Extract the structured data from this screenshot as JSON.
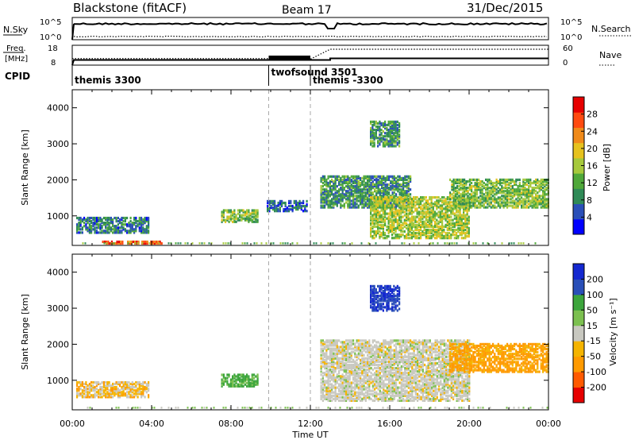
{
  "header": {
    "station": "Blackstone (fitACF)",
    "beam": "Beam 17",
    "date": "31/Dec/2015"
  },
  "aux": {
    "nsky_label": "N.Sky",
    "nsky_ticks": [
      "10^5",
      "10^0"
    ],
    "nsearch_label": "N.Search",
    "nsearch_ticks": [
      "10^5",
      "10^0"
    ],
    "freq_label_1": "Freq.",
    "freq_label_2": "[MHz]",
    "freq_ticks": [
      "18",
      "8"
    ],
    "nave_label": "Nave",
    "nave_ticks": [
      "60",
      "0"
    ],
    "cpid_label": "CPID",
    "cpid_segments": [
      {
        "label": "themis 3300",
        "start": 0,
        "end": 9.9
      },
      {
        "label": "twofsound 3501",
        "start": 9.9,
        "end": 12
      },
      {
        "label": "themis -3300",
        "start": 12,
        "end": 24
      }
    ]
  },
  "chart_data": [
    {
      "type": "heatmap",
      "name": "power",
      "ylabel": "Slant Range [km]",
      "x_range_hours": [
        0,
        24
      ],
      "ylim": [
        180,
        4500
      ],
      "yticks": [
        "1000",
        "2000",
        "3000",
        "4000"
      ],
      "colorbar": {
        "label": "Power [dB]",
        "ticks": [
          "28",
          "24",
          "20",
          "16",
          "12",
          "8",
          "4"
        ],
        "colors": [
          "#0000ff",
          "#2a4fb8",
          "#2f8a57",
          "#4fa83a",
          "#a6c93c",
          "#e6c21e",
          "#f08a1a",
          "#ff4a10",
          "#e60000"
        ]
      },
      "echo_regions": [
        {
          "t_start": 0.2,
          "t_end": 3.8,
          "r_start": 500,
          "r_end": 950,
          "level": 8
        },
        {
          "t_start": 1.5,
          "t_end": 4.5,
          "r_start": 200,
          "r_end": 280,
          "level": 26
        },
        {
          "t_start": 7.5,
          "t_end": 9.3,
          "r_start": 800,
          "r_end": 1150,
          "level": 14
        },
        {
          "t_start": 9.8,
          "t_end": 11.8,
          "r_start": 1100,
          "r_end": 1400,
          "level": 6
        },
        {
          "t_start": 12.5,
          "t_end": 17,
          "r_start": 1200,
          "r_end": 2100,
          "level": 10
        },
        {
          "t_start": 15,
          "t_end": 20,
          "r_start": 350,
          "r_end": 1500,
          "level": 16
        },
        {
          "t_start": 19,
          "t_end": 24,
          "r_start": 1200,
          "r_end": 2000,
          "level": 14
        },
        {
          "t_start": 15,
          "t_end": 16.5,
          "r_start": 2900,
          "r_end": 3600,
          "level": 10
        }
      ]
    },
    {
      "type": "heatmap",
      "name": "velocity",
      "ylabel": "Slant Range [km]",
      "xlabel": "Time UT",
      "x_range_hours": [
        0,
        24
      ],
      "ylim": [
        180,
        4500
      ],
      "yticks": [
        "1000",
        "2000",
        "3000",
        "4000"
      ],
      "xticks": [
        "00:00",
        "04:00",
        "08:00",
        "12:00",
        "16:00",
        "20:00",
        "00:00"
      ],
      "colorbar": {
        "label": "Velocity [m s⁻¹]",
        "ticks": [
          "200",
          "100",
          "50",
          "15",
          "-15",
          "-50",
          "-100",
          "-200"
        ],
        "colors": [
          "#e60000",
          "#ff5a00",
          "#ff9a00",
          "#f5b400",
          "#c8c8c0",
          "#7cc050",
          "#3ca53c",
          "#2a4fb8",
          "#1428d0"
        ]
      },
      "echo_regions": [
        {
          "t_start": 0.2,
          "t_end": 3.8,
          "r_start": 500,
          "r_end": 950,
          "level": -20
        },
        {
          "t_start": 7.5,
          "t_end": 9.3,
          "r_start": 800,
          "r_end": 1150,
          "level": 40
        },
        {
          "t_start": 12.5,
          "t_end": 20,
          "r_start": 400,
          "r_end": 2100,
          "level": 0
        },
        {
          "t_start": 19,
          "t_end": 24,
          "r_start": 1200,
          "r_end": 2000,
          "level": -40
        },
        {
          "t_start": 15,
          "t_end": 16.5,
          "r_start": 2900,
          "r_end": 3600,
          "level": 150
        }
      ]
    }
  ]
}
